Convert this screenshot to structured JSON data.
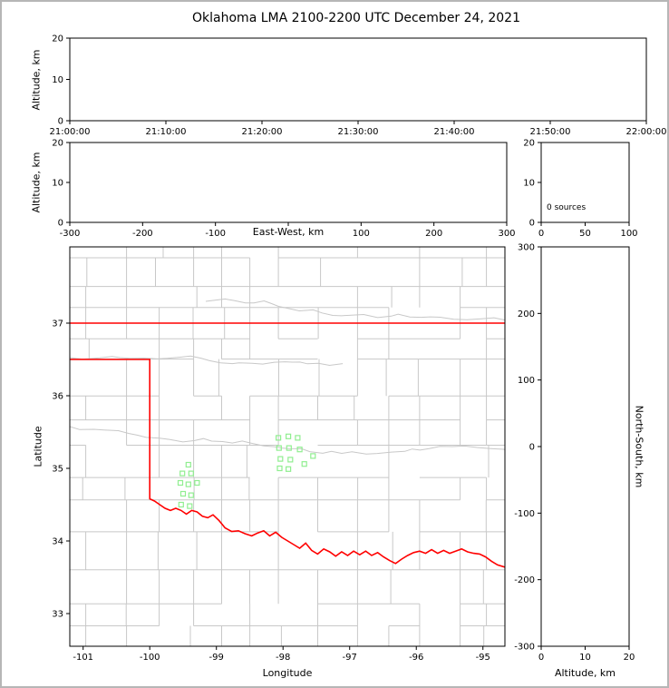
{
  "figure": {
    "title": "Oklahoma LMA 2100-2200 UTC December 24, 2021",
    "background": "#ffffff",
    "border_color": "#b6b6b6"
  },
  "colors": {
    "axis": "#000000",
    "county": "#c8c8c8",
    "state_border": "#ff0000",
    "source_marker": "#90ee90"
  },
  "chart_data": {
    "time_height": {
      "type": "scatter",
      "x_tick_labels": [
        "21:00:00",
        "21:10:00",
        "21:20:00",
        "21:30:00",
        "21:40:00",
        "21:50:00",
        "22:00:00"
      ],
      "ylabel": "Altitude, km",
      "ylim": [
        0,
        20
      ],
      "y_ticks": [
        0,
        10,
        20
      ],
      "points": []
    },
    "ew_height": {
      "type": "scatter",
      "xlabel": "East-West, km",
      "xlim": [
        -300,
        300
      ],
      "x_ticks": [
        -300,
        -200,
        -100,
        0,
        100,
        200,
        300
      ],
      "x_tick_labels": [
        "-300",
        "-200",
        "-100",
        "",
        "100",
        "200",
        "300"
      ],
      "ylabel": "Altitude, km",
      "ylim": [
        0,
        20
      ],
      "y_ticks": [
        0,
        10,
        20
      ],
      "points": []
    },
    "source_count": {
      "type": "scatter",
      "annotation": "0 sources",
      "xlim": [
        0,
        100
      ],
      "x_ticks": [
        0,
        50,
        100
      ],
      "ylim": [
        0,
        20
      ],
      "y_ticks": [
        0,
        10,
        20
      ],
      "points": []
    },
    "plan_view": {
      "type": "scatter",
      "xlabel": "Longitude",
      "ylabel": "Latitude",
      "xlim": [
        -101.2,
        -94.67
      ],
      "ylim": [
        32.55,
        38.05
      ],
      "x_ticks": [
        -101,
        -100,
        -99,
        -98,
        -97,
        -96,
        -95
      ],
      "x_tick_labels": [
        "-101",
        "-100",
        "-99",
        "-98",
        "-97",
        "-96",
        "-95"
      ],
      "y_ticks": [
        33,
        34,
        35,
        36,
        37
      ],
      "marker": "open-square",
      "points": [
        [
          -99.42,
          35.05
        ],
        [
          -99.51,
          34.93
        ],
        [
          -99.38,
          34.93
        ],
        [
          -99.54,
          34.8
        ],
        [
          -99.42,
          34.78
        ],
        [
          -99.29,
          34.8
        ],
        [
          -99.5,
          34.65
        ],
        [
          -99.38,
          34.63
        ],
        [
          -99.53,
          34.5
        ],
        [
          -99.4,
          34.48
        ],
        [
          -98.07,
          35.42
        ],
        [
          -97.92,
          35.44
        ],
        [
          -97.78,
          35.42
        ],
        [
          -98.06,
          35.28
        ],
        [
          -97.91,
          35.28
        ],
        [
          -97.75,
          35.26
        ],
        [
          -98.04,
          35.13
        ],
        [
          -97.89,
          35.12
        ],
        [
          -98.05,
          35.0
        ],
        [
          -97.92,
          34.99
        ],
        [
          -97.55,
          35.17
        ],
        [
          -97.68,
          35.06
        ]
      ],
      "state_border": {
        "north": [
          [
            -101.2,
            37.0
          ],
          [
            -94.67,
            37.0
          ]
        ],
        "outline": [
          [
            -101.2,
            36.5
          ],
          [
            -100.0,
            36.5
          ],
          [
            -100.0,
            34.58
          ],
          [
            -99.93,
            34.55
          ],
          [
            -99.85,
            34.5
          ],
          [
            -99.77,
            34.45
          ],
          [
            -99.69,
            34.42
          ],
          [
            -99.61,
            34.45
          ],
          [
            -99.53,
            34.42
          ],
          [
            -99.45,
            34.37
          ],
          [
            -99.37,
            34.42
          ],
          [
            -99.29,
            34.4
          ],
          [
            -99.21,
            34.34
          ],
          [
            -99.13,
            34.32
          ],
          [
            -99.05,
            34.36
          ],
          [
            -98.96,
            34.28
          ],
          [
            -98.87,
            34.18
          ],
          [
            -98.77,
            34.13
          ],
          [
            -98.67,
            34.14
          ],
          [
            -98.57,
            34.1
          ],
          [
            -98.47,
            34.07
          ],
          [
            -98.38,
            34.11
          ],
          [
            -98.29,
            34.14
          ],
          [
            -98.2,
            34.07
          ],
          [
            -98.11,
            34.12
          ],
          [
            -98.02,
            34.05
          ],
          [
            -97.93,
            34.0
          ],
          [
            -97.84,
            33.95
          ],
          [
            -97.75,
            33.9
          ],
          [
            -97.66,
            33.97
          ],
          [
            -97.57,
            33.87
          ],
          [
            -97.48,
            33.82
          ],
          [
            -97.39,
            33.89
          ],
          [
            -97.3,
            33.85
          ],
          [
            -97.21,
            33.79
          ],
          [
            -97.12,
            33.85
          ],
          [
            -97.03,
            33.8
          ],
          [
            -96.94,
            33.86
          ],
          [
            -96.85,
            33.81
          ],
          [
            -96.76,
            33.86
          ],
          [
            -96.67,
            33.8
          ],
          [
            -96.58,
            33.84
          ],
          [
            -96.49,
            33.78
          ],
          [
            -96.4,
            33.73
          ],
          [
            -96.31,
            33.69
          ],
          [
            -96.22,
            33.75
          ],
          [
            -96.13,
            33.8
          ],
          [
            -96.04,
            33.84
          ],
          [
            -95.95,
            33.86
          ],
          [
            -95.86,
            33.83
          ],
          [
            -95.77,
            33.88
          ],
          [
            -95.68,
            33.83
          ],
          [
            -95.59,
            33.87
          ],
          [
            -95.5,
            33.83
          ],
          [
            -95.41,
            33.86
          ],
          [
            -95.32,
            33.89
          ],
          [
            -95.23,
            33.85
          ],
          [
            -95.14,
            33.83
          ],
          [
            -95.05,
            33.82
          ],
          [
            -94.96,
            33.78
          ],
          [
            -94.87,
            33.72
          ],
          [
            -94.78,
            33.67
          ],
          [
            -94.67,
            33.64
          ]
        ]
      }
    },
    "ns_height": {
      "type": "scatter",
      "xlabel": "Altitude, km",
      "xlim": [
        0,
        20
      ],
      "x_ticks": [
        0,
        10,
        20
      ],
      "ylabel": "North-South, km",
      "ylim": [
        -300,
        300
      ],
      "y_ticks": [
        300,
        200,
        100,
        0,
        -100,
        -200,
        -300
      ],
      "points": []
    }
  }
}
